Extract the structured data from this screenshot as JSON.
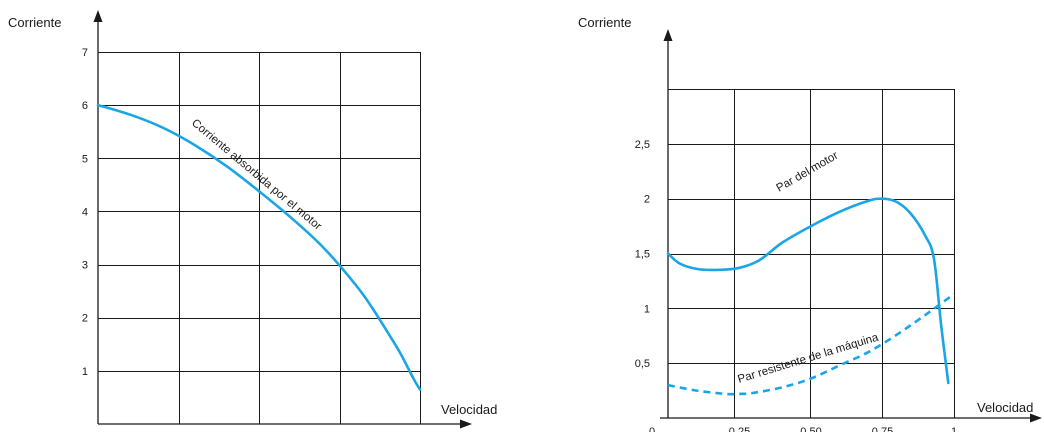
{
  "colors": {
    "curve": "#1aa6e6",
    "grid": "#1a1a1a"
  },
  "chart_data": [
    {
      "type": "line",
      "ylabel": "Corriente",
      "xlabel": "Velocidad",
      "ylim": [
        0,
        7
      ],
      "xlim": [
        0,
        1
      ],
      "y_ticks": [
        "1",
        "2",
        "3",
        "4",
        "5",
        "6",
        "7"
      ],
      "x_ticks": [],
      "grid": true,
      "series": [
        {
          "name": "Corriente absorbida por el motor",
          "style": "solid",
          "x": [
            0,
            0.1,
            0.2,
            0.3,
            0.4,
            0.5,
            0.6,
            0.7,
            0.8,
            0.85,
            0.9,
            0.94,
            0.98,
            1.0
          ],
          "y": [
            6.0,
            5.82,
            5.58,
            5.25,
            4.85,
            4.38,
            3.88,
            3.32,
            2.62,
            2.2,
            1.72,
            1.32,
            0.85,
            0.65
          ]
        }
      ]
    },
    {
      "type": "line",
      "ylabel": "Corriente",
      "xlabel": "Velocidad",
      "ylim": [
        0,
        3
      ],
      "xlim": [
        0,
        1
      ],
      "y_ticks": [
        "0,5",
        "1",
        "1,5",
        "2",
        "2,5"
      ],
      "x_ticks": [
        "0",
        "0,25",
        "0,50",
        "0,75",
        "1"
      ],
      "grid": true,
      "series": [
        {
          "name": "Par del motor",
          "style": "solid",
          "x": [
            0,
            0.04,
            0.1,
            0.17,
            0.25,
            0.32,
            0.4,
            0.5,
            0.6,
            0.7,
            0.75,
            0.8,
            0.85,
            0.9,
            0.93,
            0.955,
            0.98
          ],
          "y": [
            1.5,
            1.41,
            1.36,
            1.35,
            1.37,
            1.44,
            1.6,
            1.75,
            1.88,
            1.98,
            2.0,
            1.97,
            1.86,
            1.66,
            1.45,
            0.85,
            0.32
          ]
        },
        {
          "name": "Par resistente de la máquina",
          "style": "dashed",
          "x": [
            0,
            0.1,
            0.2,
            0.25,
            0.3,
            0.4,
            0.5,
            0.6,
            0.7,
            0.8,
            0.9,
            1.0
          ],
          "y": [
            0.3,
            0.25,
            0.22,
            0.22,
            0.23,
            0.28,
            0.36,
            0.48,
            0.6,
            0.76,
            0.94,
            1.13
          ]
        }
      ]
    }
  ]
}
